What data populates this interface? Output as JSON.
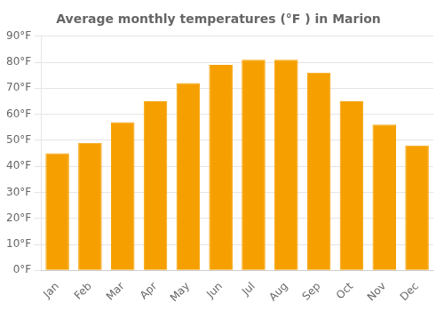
{
  "chart_data": {
    "type": "bar",
    "title": "Average monthly temperatures (°F ) in Marion",
    "categories": [
      "Jan",
      "Feb",
      "Mar",
      "Apr",
      "May",
      "Jun",
      "Jul",
      "Aug",
      "Sep",
      "Oct",
      "Nov",
      "Dec"
    ],
    "values": [
      45,
      49,
      57,
      65,
      72,
      79,
      81,
      81,
      76,
      65,
      56,
      48
    ],
    "color": "#F5A000",
    "ylim": [
      0,
      90
    ],
    "yticks": [
      {
        "value": 0,
        "label": "0°F"
      },
      {
        "value": 10,
        "label": "10°F"
      },
      {
        "value": 20,
        "label": "20°F"
      },
      {
        "value": 30,
        "label": "30°F"
      },
      {
        "value": 40,
        "label": "40°F"
      },
      {
        "value": 50,
        "label": "50°F"
      },
      {
        "value": 60,
        "label": "60°F"
      },
      {
        "value": 70,
        "label": "70°F"
      },
      {
        "value": 80,
        "label": "80°F"
      },
      {
        "value": 90,
        "label": "90°F"
      }
    ],
    "grid": true
  }
}
